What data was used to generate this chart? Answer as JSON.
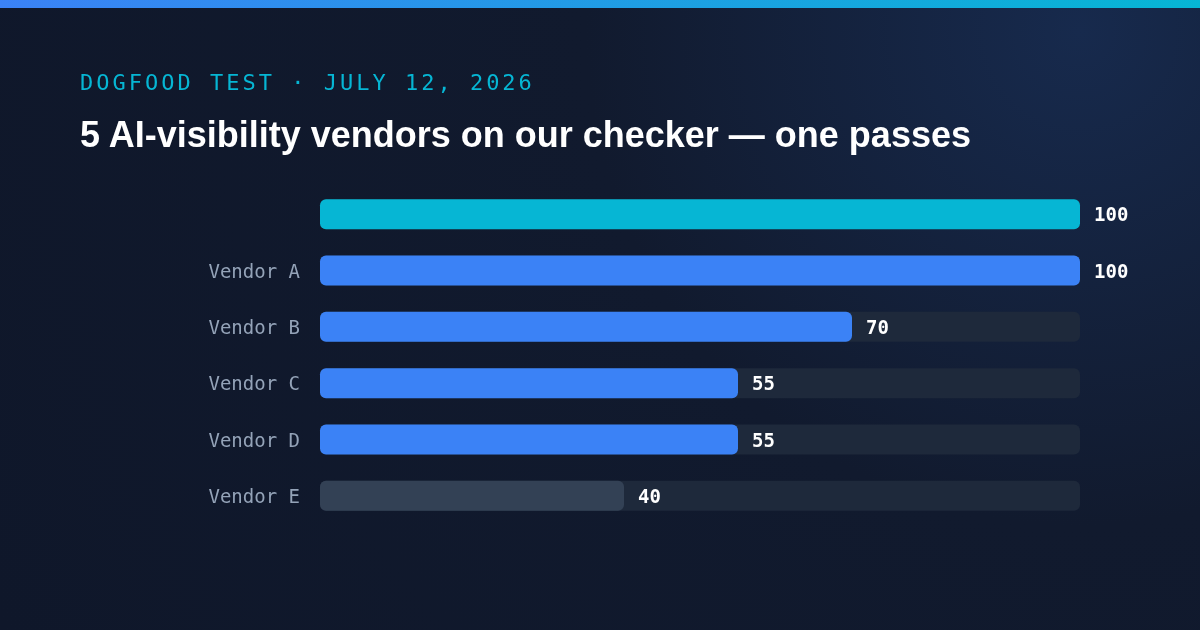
{
  "chart_data": {
    "type": "bar",
    "orientation": "horizontal",
    "title": "5 AI-visibility vendors on our checker — one passes",
    "subtitle": "DOGFOOD TEST · JULY 12, 2026",
    "categories": [
      null,
      "Vendor A",
      "Vendor B",
      "Vendor C",
      "Vendor D",
      "Vendor E"
    ],
    "values": [
      100,
      100,
      70,
      55,
      55,
      40
    ],
    "colors": [
      "#06b6d4",
      "#3b82f6",
      "#3b82f6",
      "#3b82f6",
      "#3b82f6",
      "#334155"
    ],
    "data_labels": true
  }
}
